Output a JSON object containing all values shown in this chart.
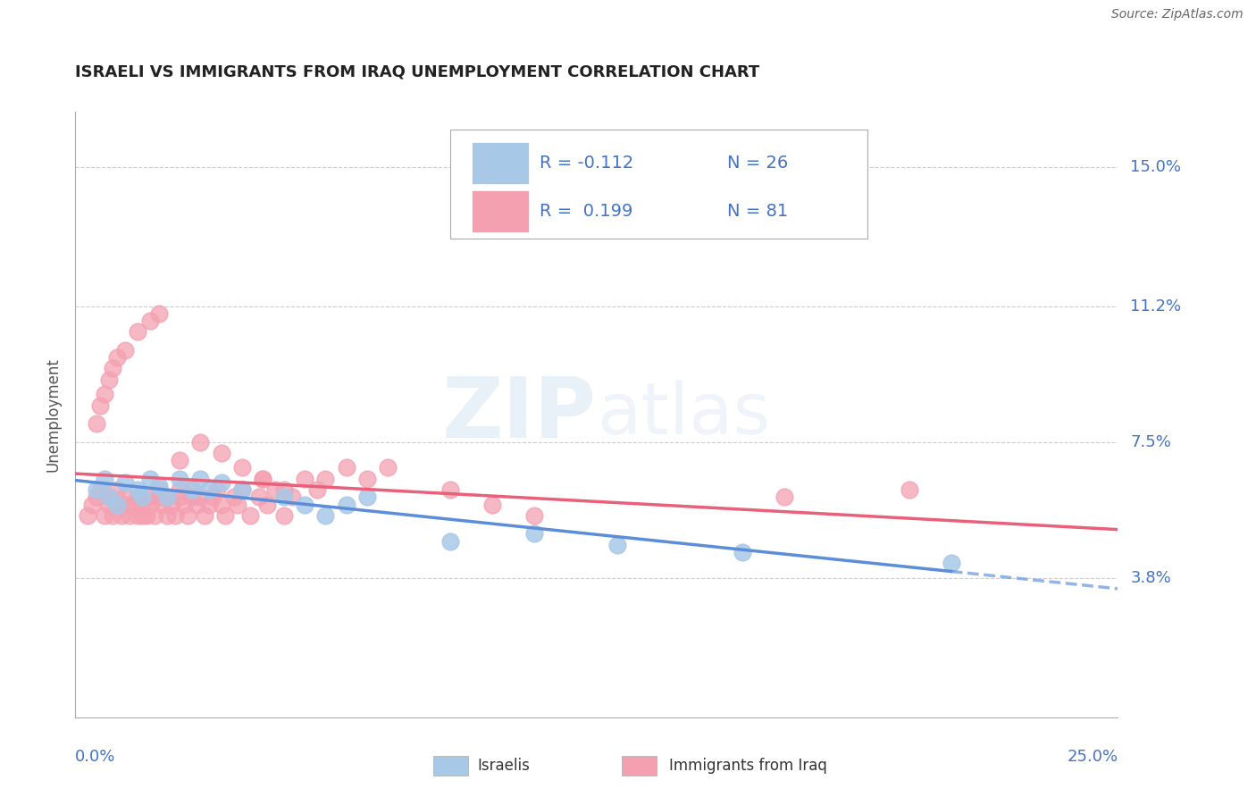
{
  "title": "ISRAELI VS IMMIGRANTS FROM IRAQ UNEMPLOYMENT CORRELATION CHART",
  "source": "Source: ZipAtlas.com",
  "ylabel": "Unemployment",
  "yticks": [
    0.0,
    0.038,
    0.075,
    0.112,
    0.15
  ],
  "ytick_labels": [
    "",
    "3.8%",
    "7.5%",
    "11.2%",
    "15.0%"
  ],
  "xtick_labels": [
    "0.0%",
    "25.0%"
  ],
  "xlim": [
    0.0,
    0.25
  ],
  "ylim": [
    0.0,
    0.165
  ],
  "watermark": "ZIPatlas",
  "israelis_color": "#A8C8E8",
  "iraq_color": "#F4A0B0",
  "trend_israelis_color": "#5B8DD9",
  "trend_iraq_color": "#E8607A",
  "legend_label1": "R = -0.112   N = 26",
  "legend_label2": "R =  0.199   N = 81",
  "bottom_label1": "Israelis",
  "bottom_label2": "Immigrants from Iraq",
  "israelis_x": [
    0.005,
    0.007,
    0.008,
    0.01,
    0.012,
    0.015,
    0.016,
    0.018,
    0.02,
    0.022,
    0.025,
    0.028,
    0.03,
    0.032,
    0.035,
    0.04,
    0.05,
    0.055,
    0.06,
    0.065,
    0.07,
    0.09,
    0.11,
    0.13,
    0.16,
    0.21
  ],
  "israelis_y": [
    0.062,
    0.065,
    0.06,
    0.058,
    0.064,
    0.062,
    0.06,
    0.065,
    0.063,
    0.06,
    0.065,
    0.062,
    0.065,
    0.062,
    0.064,
    0.062,
    0.06,
    0.058,
    0.055,
    0.058,
    0.06,
    0.048,
    0.05,
    0.047,
    0.045,
    0.042
  ],
  "iraq_x": [
    0.003,
    0.004,
    0.005,
    0.006,
    0.007,
    0.008,
    0.008,
    0.009,
    0.01,
    0.01,
    0.011,
    0.012,
    0.012,
    0.013,
    0.014,
    0.015,
    0.015,
    0.016,
    0.016,
    0.017,
    0.018,
    0.018,
    0.019,
    0.02,
    0.02,
    0.021,
    0.022,
    0.022,
    0.023,
    0.024,
    0.025,
    0.025,
    0.026,
    0.027,
    0.028,
    0.028,
    0.029,
    0.03,
    0.031,
    0.032,
    0.033,
    0.034,
    0.035,
    0.036,
    0.038,
    0.039,
    0.04,
    0.042,
    0.044,
    0.045,
    0.046,
    0.048,
    0.05,
    0.052,
    0.055,
    0.058,
    0.06,
    0.065,
    0.07,
    0.075,
    0.005,
    0.006,
    0.007,
    0.008,
    0.009,
    0.01,
    0.012,
    0.015,
    0.018,
    0.02,
    0.025,
    0.03,
    0.035,
    0.04,
    0.045,
    0.05,
    0.09,
    0.1,
    0.11,
    0.17,
    0.2
  ],
  "iraq_y": [
    0.055,
    0.058,
    0.06,
    0.062,
    0.055,
    0.058,
    0.06,
    0.055,
    0.058,
    0.062,
    0.055,
    0.058,
    0.06,
    0.055,
    0.058,
    0.055,
    0.06,
    0.055,
    0.058,
    0.055,
    0.06,
    0.058,
    0.055,
    0.06,
    0.062,
    0.058,
    0.055,
    0.06,
    0.058,
    0.055,
    0.06,
    0.062,
    0.058,
    0.055,
    0.06,
    0.062,
    0.058,
    0.06,
    0.055,
    0.058,
    0.06,
    0.062,
    0.058,
    0.055,
    0.06,
    0.058,
    0.062,
    0.055,
    0.06,
    0.065,
    0.058,
    0.062,
    0.055,
    0.06,
    0.065,
    0.062,
    0.065,
    0.068,
    0.065,
    0.068,
    0.08,
    0.085,
    0.088,
    0.092,
    0.095,
    0.098,
    0.1,
    0.105,
    0.108,
    0.11,
    0.07,
    0.075,
    0.072,
    0.068,
    0.065,
    0.062,
    0.062,
    0.058,
    0.055,
    0.06,
    0.062
  ]
}
